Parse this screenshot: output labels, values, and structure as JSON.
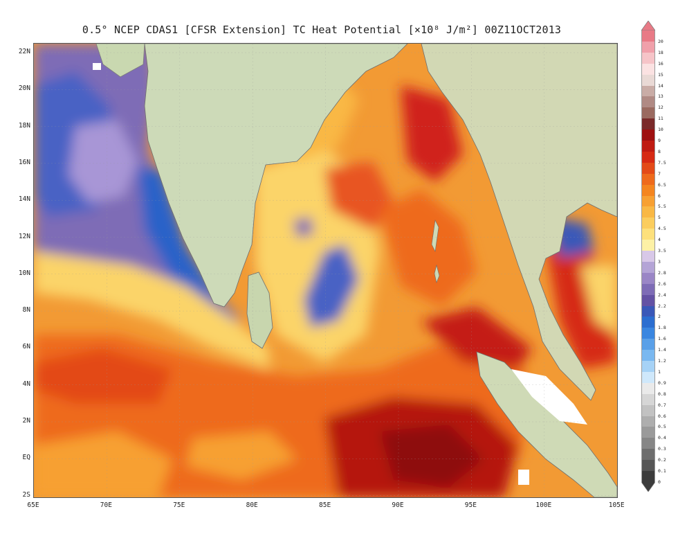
{
  "title": "0.5° NCEP CDAS1 [CFSR Extension] TC Heat Potential [×10⁸ J/m²] 00Z11OCT2013",
  "lat_ticks": [
    "22N",
    "20N",
    "18N",
    "16N",
    "14N",
    "12N",
    "10N",
    "8N",
    "6N",
    "4N",
    "2N",
    "EQ",
    "2S"
  ],
  "lon_ticks": [
    "65E",
    "70E",
    "75E",
    "80E",
    "85E",
    "90E",
    "95E",
    "100E",
    "105E"
  ],
  "colorbar": {
    "labels": [
      "20",
      "18",
      "16",
      "15",
      "14",
      "13",
      "12",
      "11",
      "10",
      "9",
      "8",
      "7.5",
      "7",
      "6.5",
      "6",
      "5.5",
      "5",
      "4.5",
      "4",
      "3.5",
      "3",
      "2.8",
      "2.6",
      "2.4",
      "2.2",
      "2",
      "1.8",
      "1.6",
      "1.4",
      "1.2",
      "1",
      "0.9",
      "0.8",
      "0.7",
      "0.6",
      "0.5",
      "0.4",
      "0.3",
      "0.2",
      "0.1",
      "0"
    ],
    "colors": [
      "#e87a86",
      "#f0a0aa",
      "#f6c4c8",
      "#fbe2e2",
      "#e9d9d5",
      "#c9aca6",
      "#b08a84",
      "#9a6a60",
      "#7a2a2a",
      "#9e1010",
      "#bf1b12",
      "#d62a14",
      "#e34a18",
      "#ee6a1c",
      "#f4851f",
      "#f7a032",
      "#f9b845",
      "#fbcd5e",
      "#fde07c",
      "#fdf1a6",
      "#d8c8e8",
      "#b4a4d6",
      "#9a86c6",
      "#7e6cb6",
      "#6452a4",
      "#3a58b8",
      "#2c6ed0",
      "#3a86e0",
      "#5aa0e8",
      "#7ab8f0",
      "#a6d2f6",
      "#cfe8fb",
      "#eaeaea",
      "#d6d6d6",
      "#c2c2c2",
      "#aeaeae",
      "#9a9a9a",
      "#868686",
      "#6e6e6e",
      "#565656",
      "#3c3c3c"
    ]
  }
}
